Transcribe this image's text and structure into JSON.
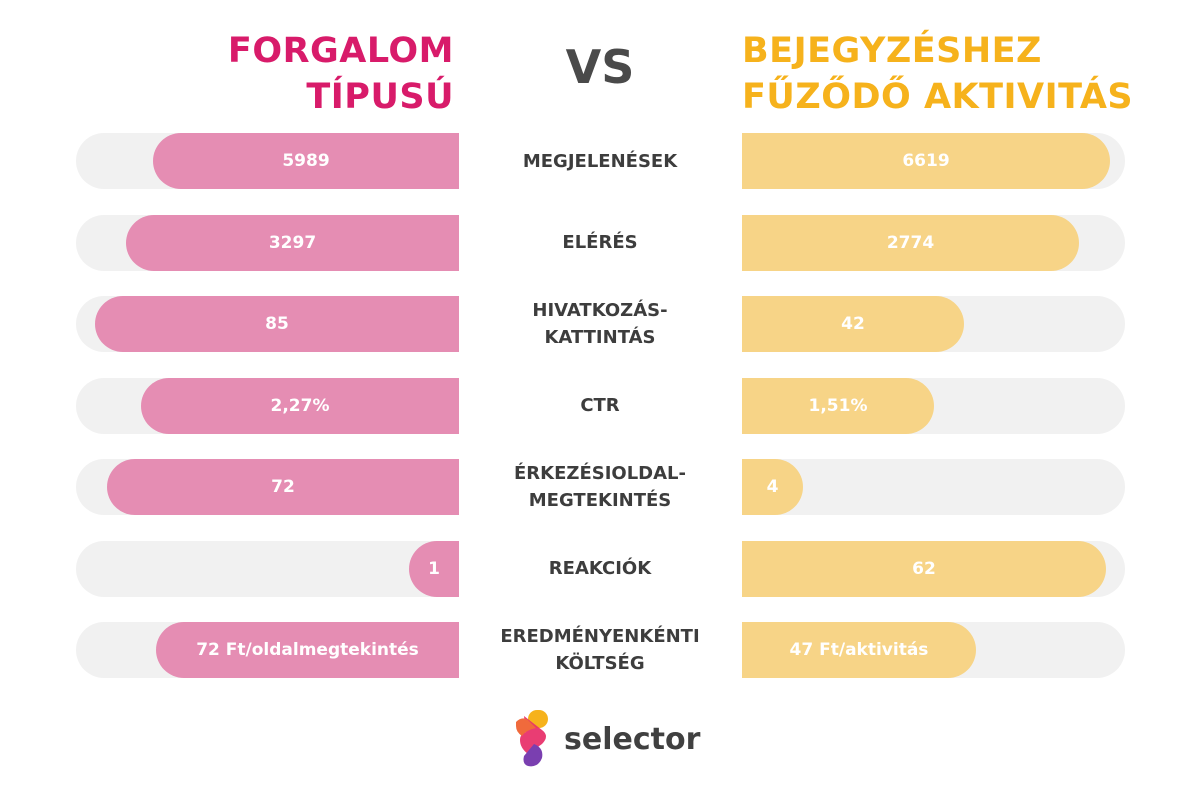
{
  "chart_data": {
    "type": "bar",
    "layout": "diverging-comparison",
    "left_title": "FORGALOM\nTÍPUSÚ",
    "right_title": "BEJEGYZÉSHEZ\nFŰZŐDŐ AKTIVITÁS",
    "vs_label": "VS",
    "categories": [
      "MEGJELENÉSEK",
      "ELÉRÉS",
      "HIVATKOZÁS-\nKATTINTÁS",
      "CTR",
      "ÉRKEZÉSIOLDAL-\nMEGTEKINTÉS",
      "REAKCIÓK",
      "EREDMÉNYENKÉNTI\nKÖLTSÉG"
    ],
    "series": [
      {
        "color": "#e58db3",
        "labels": [
          "5989",
          "3297",
          "85",
          "2,27%",
          "72",
          "1",
          "72 Ft/oldalmegtekintés"
        ],
        "values": [
          5989,
          3297,
          85,
          2.27,
          72,
          1,
          72
        ],
        "bar_fraction": [
          0.8,
          0.87,
          0.95,
          0.83,
          0.92,
          0.13,
          0.79
        ]
      },
      {
        "color": "#f7d487",
        "labels": [
          "6619",
          "2774",
          "42",
          "1,51%",
          "4",
          "62",
          "47 Ft/aktivitás"
        ],
        "values": [
          6619,
          2774,
          42,
          1.51,
          4,
          62,
          47
        ],
        "bar_fraction": [
          0.96,
          0.88,
          0.58,
          0.5,
          0.16,
          0.95,
          0.61
        ]
      }
    ],
    "colors": {
      "left_title": "#d81b6a",
      "right_title": "#f6b21c",
      "track": "#f1f1f1"
    }
  },
  "logo": {
    "text": "selector"
  }
}
